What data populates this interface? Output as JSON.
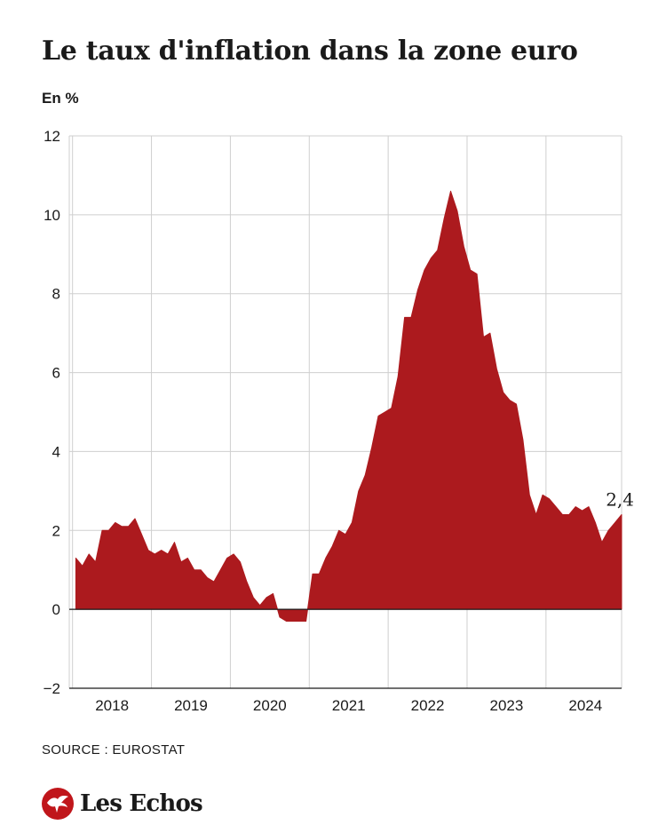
{
  "title": "Le taux d'inflation dans la zone euro",
  "unit_label": "En %",
  "source": "SOURCE : EUROSTAT",
  "logo": {
    "text": "Les Echos",
    "icon": "les-echos-eagle-icon"
  },
  "colors": {
    "fill": "#ac1a1e",
    "grid": "#cfcfcf",
    "axis": "#1a1a1a",
    "text": "#1a1a1a"
  },
  "chart_data": {
    "type": "area",
    "title": "Le taux d'inflation dans la zone euro",
    "ylabel": "En %",
    "xlabel": "",
    "ylim": [
      -2,
      12
    ],
    "yticks": [
      -2,
      0,
      2,
      4,
      6,
      8,
      10,
      12
    ],
    "ytick_labels": [
      "−2",
      "0",
      "2",
      "4",
      "6",
      "8",
      "10",
      "12"
    ],
    "xlim": [
      "2017-12",
      "2024-12"
    ],
    "year_ticks": [
      "2018",
      "2019",
      "2020",
      "2021",
      "2022",
      "2023",
      "2024"
    ],
    "grid": true,
    "x_start": "2018-01",
    "frequency": "monthly",
    "values": [
      1.3,
      1.1,
      1.4,
      1.2,
      2.0,
      2.0,
      2.2,
      2.1,
      2.1,
      2.3,
      1.9,
      1.5,
      1.4,
      1.5,
      1.4,
      1.7,
      1.2,
      1.3,
      1.0,
      1.0,
      0.8,
      0.7,
      1.0,
      1.3,
      1.4,
      1.2,
      0.7,
      0.3,
      0.1,
      0.3,
      0.4,
      -0.2,
      -0.3,
      -0.3,
      -0.3,
      -0.3,
      0.9,
      0.9,
      1.3,
      1.6,
      2.0,
      1.9,
      2.2,
      3.0,
      3.4,
      4.1,
      4.9,
      5.0,
      5.1,
      5.9,
      7.4,
      7.4,
      8.1,
      8.6,
      8.9,
      9.1,
      9.9,
      10.6,
      10.1,
      9.2,
      8.6,
      8.5,
      6.9,
      7.0,
      6.1,
      5.5,
      5.3,
      5.2,
      4.3,
      2.9,
      2.4,
      2.9,
      2.8,
      2.6,
      2.4,
      2.4,
      2.6,
      2.5,
      2.6,
      2.2,
      1.7,
      2.0,
      2.2,
      2.4
    ],
    "annotations": [
      {
        "x": "2024-12",
        "text": "2,4"
      }
    ]
  }
}
